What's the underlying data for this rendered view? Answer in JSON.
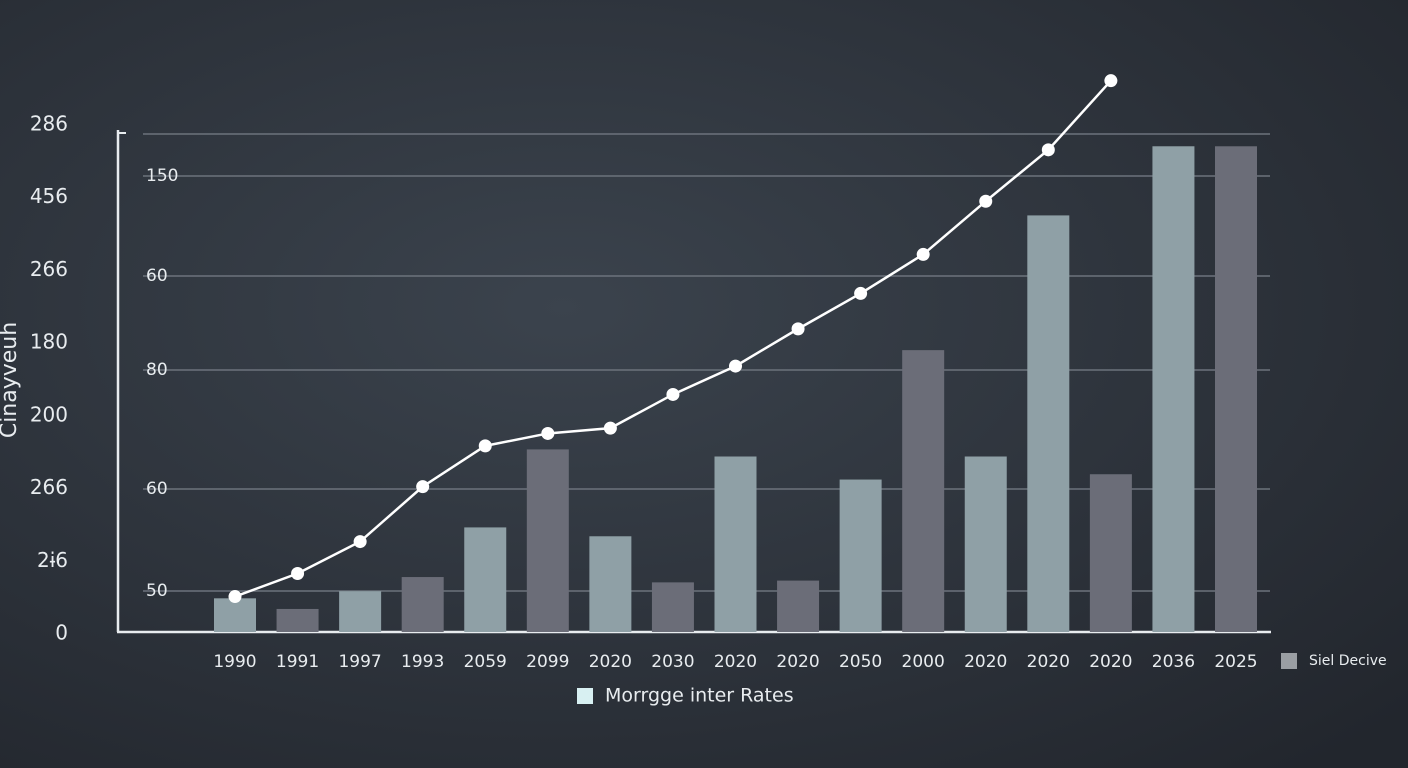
{
  "chart_data": {
    "type": "bar",
    "y_axis_label": "Cinayveuh",
    "left_labels": [
      "286",
      "456",
      "266",
      "180",
      "200",
      "266",
      "2ɨ6",
      "0"
    ],
    "inner_labels": [
      "150",
      "60",
      "80",
      "60",
      "50"
    ],
    "categories": [
      "1990",
      "1991",
      "1997",
      "1993",
      "2059",
      "2099",
      "2020",
      "2030",
      "2020",
      "2020",
      "2050",
      "2000",
      "2020",
      "2020",
      "2020",
      "2036",
      "2025"
    ],
    "ylim": [
      0,
      286
    ],
    "grid": true,
    "series": [
      {
        "name": "Siel Decive",
        "type": "bar",
        "color": "#9a9ea3",
        "colors": [
          "#8fa0a6",
          "#6b6d78",
          "#8fa0a6",
          "#6b6d78",
          "#8fa0a6",
          "#6b6d78",
          "#8fa0a6",
          "#6b6d78",
          "#8fa0a6",
          "#6b6d78",
          "#8fa0a6",
          "#6b6d78",
          "#8fa0a6",
          "#8fa0a6",
          "#6b6d78",
          "#8fa0a6",
          "#6b6d78"
        ],
        "values": [
          19,
          13,
          23,
          31,
          59,
          103,
          54,
          28,
          99,
          29,
          86,
          159,
          99,
          235,
          89,
          274,
          274
        ]
      },
      {
        "name": "Morrgge inter Rates",
        "type": "line",
        "color": "#ffffff",
        "values": [
          20,
          33,
          51,
          82,
          105,
          112,
          115,
          134,
          150,
          171,
          191,
          213,
          243,
          272,
          311,
          null,
          null
        ]
      }
    ]
  }
}
